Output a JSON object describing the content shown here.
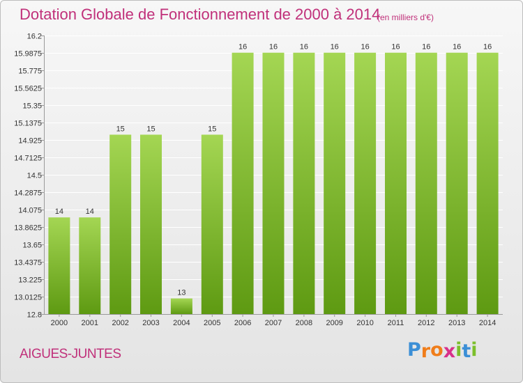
{
  "title": "Dotation Globale de Fonctionnement de 2000 à 2014",
  "subtitle": "(en milliers d'€)",
  "town": "AIGUES-JUNTES",
  "logo": {
    "letters": [
      "P",
      "r",
      "o",
      "x",
      "i",
      "t",
      "i"
    ],
    "colors": [
      "#3b8fd6",
      "#f07d1a",
      "#f07d1a",
      "#d8308a",
      "#7cbf2c",
      "#3b8fd6",
      "#7cbf2c"
    ]
  },
  "colors": {
    "bar_light": "#a4d653",
    "bar_dark": "#5e9a12",
    "title": "#c0307a",
    "grid": "#ffffff"
  },
  "chart_data": {
    "type": "bar",
    "categories": [
      "2000",
      "2001",
      "2002",
      "2003",
      "2004",
      "2005",
      "2006",
      "2007",
      "2008",
      "2009",
      "2010",
      "2011",
      "2012",
      "2013",
      "2014"
    ],
    "values": [
      13.98,
      13.98,
      14.99,
      14.99,
      12.99,
      14.99,
      15.99,
      15.99,
      15.99,
      15.99,
      15.99,
      15.99,
      15.99,
      15.99,
      15.99
    ],
    "value_labels": [
      "14",
      "14",
      "15",
      "15",
      "13",
      "15",
      "16",
      "16",
      "16",
      "16",
      "16",
      "16",
      "16",
      "16",
      "16"
    ],
    "yticks": [
      "12.8",
      "13.0125",
      "13.225",
      "13.4375",
      "13.65",
      "13.8625",
      "14.075",
      "14.2875",
      "14.5",
      "14.7125",
      "14.925",
      "15.1375",
      "15.35",
      "15.5625",
      "15.775",
      "15.9875",
      "16.2"
    ],
    "ylim": [
      12.8,
      16.2
    ],
    "grid": true,
    "title": "Dotation Globale de Fonctionnement de 2000 à 2014",
    "xlabel": "",
    "ylabel": ""
  }
}
